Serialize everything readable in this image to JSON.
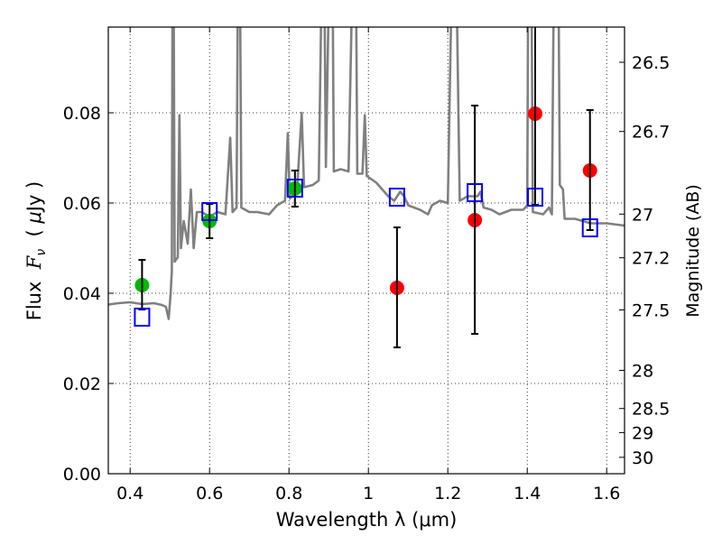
{
  "chart_data": {
    "type": "scatter",
    "xlabel": "Wavelength  λ (μm)",
    "ylabel": "Flux  F_ν  ( μJy )",
    "ylabel_parts": {
      "prefix": "Flux  ",
      "symbol": "F",
      "subscript": "ν",
      "unit_open": "  ( ",
      "unit_mu": "μ",
      "unit_rest": "Jy )"
    },
    "y2label": "Magnitude (AB)",
    "xlim": [
      0.345,
      1.645
    ],
    "ylim": [
      0.0,
      0.099
    ],
    "grid": true,
    "x_ticks": [
      "0.4",
      "0.6",
      "0.8",
      "1",
      "1.2",
      "1.4",
      "1.6"
    ],
    "x_tick_values": [
      0.4,
      0.6,
      0.8,
      1.0,
      1.2,
      1.4,
      1.6
    ],
    "y_ticks": [
      "0.00",
      "0.02",
      "0.04",
      "0.06",
      "0.08"
    ],
    "y_tick_values": [
      0.0,
      0.02,
      0.04,
      0.06,
      0.08
    ],
    "y2_ticks": [
      "26.5",
      "26.7",
      "27",
      "27.2",
      "27.5",
      "28",
      "28.5",
      "29",
      "30"
    ],
    "y2_tick_values": [
      26.5,
      26.7,
      27.0,
      27.2,
      27.5,
      28.0,
      28.5,
      29.0,
      30.0
    ],
    "mag_zeropoint": 23.9,
    "colors": {
      "spectrum": "#808080",
      "green": "#00bb00",
      "red": "#ff0000",
      "model": "#0000ff",
      "error": "#000000"
    },
    "spectrum": {
      "name": "model spectrum",
      "points": [
        [
          0.345,
          0.0375
        ],
        [
          0.37,
          0.0378
        ],
        [
          0.4,
          0.038
        ],
        [
          0.43,
          0.0376
        ],
        [
          0.46,
          0.0378
        ],
        [
          0.48,
          0.0374
        ],
        [
          0.49,
          0.037
        ],
        [
          0.497,
          0.0343
        ],
        [
          0.502,
          0.04
        ],
        [
          0.505,
          0.045
        ],
        [
          0.507,
          0.12
        ],
        [
          0.509,
          0.12
        ],
        [
          0.512,
          0.047
        ],
        [
          0.52,
          0.048
        ],
        [
          0.524,
          0.0795
        ],
        [
          0.528,
          0.05
        ],
        [
          0.535,
          0.056
        ],
        [
          0.545,
          0.051
        ],
        [
          0.553,
          0.063
        ],
        [
          0.56,
          0.05
        ],
        [
          0.568,
          0.058
        ],
        [
          0.58,
          0.058
        ],
        [
          0.6,
          0.057
        ],
        [
          0.62,
          0.058
        ],
        [
          0.64,
          0.0575
        ],
        [
          0.652,
          0.0745
        ],
        [
          0.658,
          0.058
        ],
        [
          0.668,
          0.059
        ],
        [
          0.672,
          0.12
        ],
        [
          0.676,
          0.12
        ],
        [
          0.68,
          0.059
        ],
        [
          0.7,
          0.058
        ],
        [
          0.72,
          0.058
        ],
        [
          0.75,
          0.0575
        ],
        [
          0.77,
          0.0595
        ],
        [
          0.79,
          0.0605
        ],
        [
          0.797,
          0.0755
        ],
        [
          0.802,
          0.061
        ],
        [
          0.82,
          0.0625
        ],
        [
          0.832,
          0.08
        ],
        [
          0.838,
          0.0635
        ],
        [
          0.86,
          0.064
        ],
        [
          0.875,
          0.065
        ],
        [
          0.884,
          0.12
        ],
        [
          0.888,
          0.12
        ],
        [
          0.893,
          0.068
        ],
        [
          0.903,
          0.12
        ],
        [
          0.909,
          0.12
        ],
        [
          0.913,
          0.067
        ],
        [
          0.93,
          0.0675
        ],
        [
          0.95,
          0.067
        ],
        [
          0.962,
          0.12
        ],
        [
          0.968,
          0.12
        ],
        [
          0.972,
          0.0665
        ],
        [
          0.985,
          0.0665
        ],
        [
          0.991,
          0.0795
        ],
        [
          0.996,
          0.066
        ],
        [
          1.02,
          0.0645
        ],
        [
          1.05,
          0.0615
        ],
        [
          1.065,
          0.0605
        ],
        [
          1.08,
          0.0625
        ],
        [
          1.09,
          0.0615
        ],
        [
          1.1,
          0.0595
        ],
        [
          1.13,
          0.0585
        ],
        [
          1.15,
          0.0575
        ],
        [
          1.16,
          0.0595
        ],
        [
          1.18,
          0.0605
        ],
        [
          1.2,
          0.06
        ],
        [
          1.212,
          0.12
        ],
        [
          1.22,
          0.12
        ],
        [
          1.23,
          0.0605
        ],
        [
          1.25,
          0.0615
        ],
        [
          1.275,
          0.0615
        ],
        [
          1.282,
          0.0625
        ],
        [
          1.29,
          0.059
        ],
        [
          1.31,
          0.0585
        ],
        [
          1.33,
          0.0575
        ],
        [
          1.36,
          0.0585
        ],
        [
          1.39,
          0.0585
        ],
        [
          1.4,
          0.0595
        ],
        [
          1.403,
          0.12
        ],
        [
          1.41,
          0.12
        ],
        [
          1.414,
          0.058
        ],
        [
          1.44,
          0.0575
        ],
        [
          1.455,
          0.059
        ],
        [
          1.462,
          0.0575
        ],
        [
          1.468,
          0.12
        ],
        [
          1.478,
          0.12
        ],
        [
          1.482,
          0.064
        ],
        [
          1.49,
          0.063
        ],
        [
          1.494,
          0.0565
        ],
        [
          1.52,
          0.0565
        ],
        [
          1.56,
          0.0555
        ],
        [
          1.6,
          0.0555
        ],
        [
          1.645,
          0.055
        ]
      ]
    },
    "series": [
      {
        "name": "observed (green)",
        "marker": "circle",
        "color": "#00bb00",
        "x": [
          0.43,
          0.6,
          0.815
        ],
        "y": [
          0.0418,
          0.056,
          0.0632
        ],
        "yerr_low": [
          0.0364,
          0.0522,
          0.0592
        ],
        "yerr_high": [
          0.0474,
          0.0598,
          0.0672
        ]
      },
      {
        "name": "observed (red)",
        "marker": "circle",
        "color": "#ff0000",
        "x": [
          1.072,
          1.268,
          1.42,
          1.558
        ],
        "y": [
          0.0412,
          0.0562,
          0.0798,
          0.0672
        ],
        "yerr_low": [
          0.028,
          0.031,
          0.0596,
          0.054
        ],
        "yerr_high": [
          0.0546,
          0.0816,
          0.105,
          0.0806
        ]
      },
      {
        "name": "model photometry",
        "marker": "open-square",
        "color": "#0000ff",
        "x": [
          0.43,
          0.6,
          0.815,
          1.072,
          1.268,
          1.42,
          1.558
        ],
        "y": [
          0.0346,
          0.058,
          0.0632,
          0.0612,
          0.0622,
          0.0612,
          0.0544
        ]
      }
    ]
  }
}
